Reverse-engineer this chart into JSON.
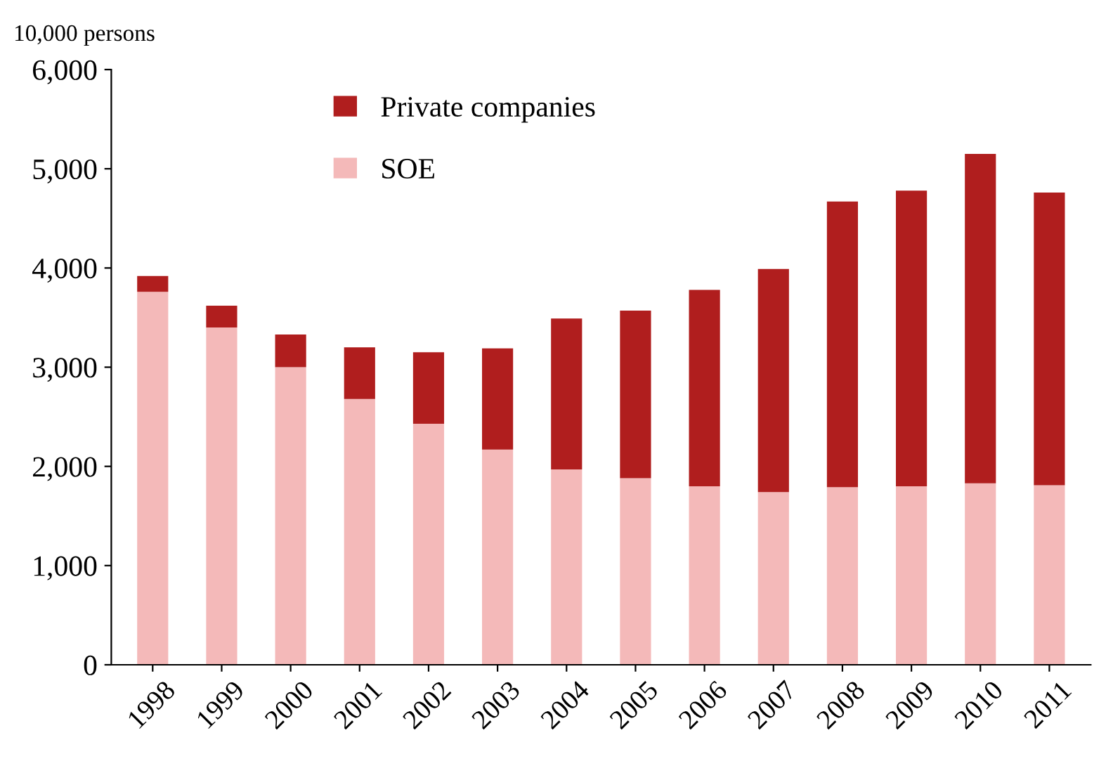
{
  "chart_data": {
    "type": "bar",
    "stacked": true,
    "ylabel": "10,000 persons",
    "categories": [
      "1998",
      "1999",
      "2000",
      "2001",
      "2002",
      "2003",
      "2004",
      "2005",
      "2006",
      "2007",
      "2008",
      "2009",
      "2010",
      "2011"
    ],
    "series": [
      {
        "name": "SOE",
        "color": "#f4b9b9",
        "values": [
          3760,
          3400,
          3000,
          2680,
          2430,
          2170,
          1970,
          1880,
          1800,
          1740,
          1790,
          1800,
          1830,
          1810
        ]
      },
      {
        "name": "Private companies",
        "color": "#b01e1e",
        "values": [
          160,
          220,
          330,
          520,
          720,
          1020,
          1520,
          1690,
          1980,
          2250,
          2880,
          2980,
          3320,
          2950
        ]
      }
    ],
    "ylim": [
      0,
      6000
    ],
    "yticks": [
      0,
      {
        "value": 1000,
        "label": "1,000"
      },
      {
        "value": 2000,
        "label": "2,000"
      },
      {
        "value": 3000,
        "label": "3,000"
      },
      {
        "value": 4000,
        "label": "4,000"
      },
      {
        "value": 5000,
        "label": "5,000"
      },
      {
        "value": 6000,
        "label": "6,000"
      }
    ],
    "grid": false,
    "legend": "top left"
  }
}
